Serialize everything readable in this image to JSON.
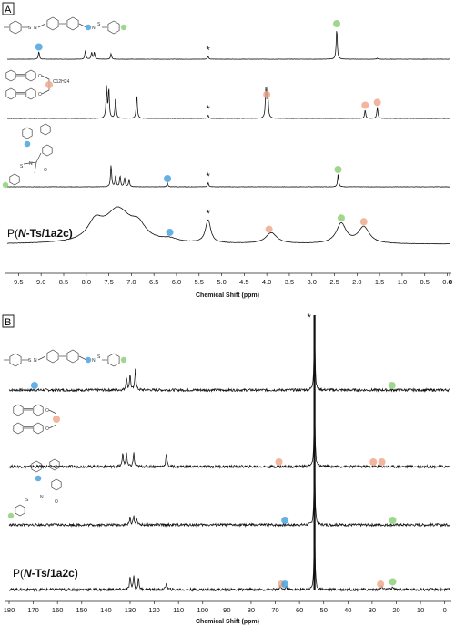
{
  "chart_data": [
    {
      "panel_label": "A",
      "type": "line",
      "nucleus_hint": "1H NMR",
      "xlabel": "Chemical Shift (ppm)",
      "xlim": [
        9.75,
        -0.05
      ],
      "reversed_x": true,
      "x_ticks": [
        "9.5",
        "9.0",
        "8.5",
        "8.0",
        "7.5",
        "7.0",
        "6.5",
        "6.0",
        "5.5",
        "5.0",
        "4.5",
        "4.0",
        "3.5",
        "3.0",
        "2.5",
        "2.0",
        "1.5",
        "1.0",
        "0.5",
        "0.0",
        "-0"
      ],
      "x_tick_values": [
        9.5,
        9.0,
        8.5,
        8.0,
        7.5,
        7.0,
        6.5,
        6.0,
        5.5,
        5.0,
        4.5,
        4.0,
        3.5,
        3.0,
        2.5,
        2.0,
        1.5,
        1.0,
        0.5,
        0.0,
        -0.05
      ],
      "series": [
        {
          "label": "",
          "kind": "sharp",
          "peaks": [
            {
              "x": 9.05,
              "h": 0.25
            },
            {
              "x": 8.02,
              "h": 0.28
            },
            {
              "x": 7.88,
              "h": 0.22
            },
            {
              "x": 7.82,
              "h": 0.22
            },
            {
              "x": 7.45,
              "h": 0.18
            },
            {
              "x": 5.3,
              "h": 0.1
            },
            {
              "x": 2.45,
              "h": 1.0
            },
            {
              "x": 1.55,
              "h": 0.03
            }
          ],
          "solvent_mark": "*",
          "solvent_x": 5.3,
          "markers": [
            {
              "x": 9.05,
              "color": "#4aa3df"
            },
            {
              "x": 2.45,
              "color": "#8fd07a"
            }
          ]
        },
        {
          "label": "",
          "kind": "sharp",
          "peaks": [
            {
              "x": 7.55,
              "h": 0.9
            },
            {
              "x": 7.5,
              "h": 0.85
            },
            {
              "x": 7.35,
              "h": 0.6
            },
            {
              "x": 6.88,
              "h": 0.7
            },
            {
              "x": 5.3,
              "h": 0.1
            },
            {
              "x": 4.02,
              "h": 0.85
            },
            {
              "x": 3.98,
              "h": 0.85
            },
            {
              "x": 1.82,
              "h": 0.25
            },
            {
              "x": 1.55,
              "h": 0.33
            }
          ],
          "solvent_mark": "*",
          "solvent_x": 5.3,
          "markers": [
            {
              "x": 4.0,
              "color": "#f0a88c"
            },
            {
              "x": 1.82,
              "color": "#f0a88c"
            },
            {
              "x": 1.55,
              "color": "#f0a88c"
            }
          ]
        },
        {
          "label": "",
          "kind": "sharp",
          "peaks": [
            {
              "x": 7.45,
              "h": 0.6
            },
            {
              "x": 7.35,
              "h": 0.3
            },
            {
              "x": 7.25,
              "h": 0.3
            },
            {
              "x": 7.15,
              "h": 0.25
            },
            {
              "x": 7.05,
              "h": 0.2
            },
            {
              "x": 6.2,
              "h": 0.1
            },
            {
              "x": 5.3,
              "h": 0.12
            },
            {
              "x": 2.42,
              "h": 0.35
            }
          ],
          "solvent_mark": "*",
          "solvent_x": 5.3,
          "markers": [
            {
              "x": 6.2,
              "color": "#4aa3df"
            },
            {
              "x": 2.42,
              "color": "#8fd07a"
            }
          ]
        },
        {
          "label": "P(N-Ts/1a2c)",
          "label_parts": [
            {
              "t": "P(",
              "b": false
            },
            {
              "t": "N",
              "b": true,
              "i": true
            },
            {
              "t": "-Ts/1a2c)",
              "b": true
            }
          ],
          "kind": "broad",
          "peaks": [
            {
              "x": 7.3,
              "h": 0.85,
              "w": 0.35
            },
            {
              "x": 7.8,
              "h": 0.45,
              "w": 0.2
            },
            {
              "x": 6.85,
              "h": 0.35,
              "w": 0.2
            },
            {
              "x": 6.15,
              "h": 0.08,
              "w": 0.2
            },
            {
              "x": 5.3,
              "h": 0.6,
              "w": 0.07
            },
            {
              "x": 3.9,
              "h": 0.28,
              "w": 0.15
            },
            {
              "x": 2.35,
              "h": 0.52,
              "w": 0.13
            },
            {
              "x": 1.85,
              "h": 0.43,
              "w": 0.15
            }
          ],
          "solvent_mark": "*",
          "solvent_x": 5.3,
          "markers": [
            {
              "x": 6.15,
              "color": "#4aa3df"
            },
            {
              "x": 3.95,
              "color": "#f0a88c"
            },
            {
              "x": 2.35,
              "color": "#8fd07a"
            },
            {
              "x": 1.85,
              "color": "#f0a88c"
            }
          ]
        }
      ]
    },
    {
      "panel_label": "B",
      "type": "line",
      "nucleus_hint": "13C NMR",
      "xlabel": "Chemical Shift (ppm)",
      "xlim": [
        180,
        -2
      ],
      "reversed_x": true,
      "x_ticks": [
        "180",
        "170",
        "160",
        "150",
        "140",
        "130",
        "120",
        "110",
        "100",
        "90",
        "80",
        "70",
        "60",
        "50",
        "40",
        "30",
        "20",
        "10",
        "0"
      ],
      "x_tick_values": [
        180,
        170,
        160,
        150,
        140,
        130,
        120,
        110,
        100,
        90,
        80,
        70,
        60,
        50,
        40,
        30,
        20,
        10,
        0
      ],
      "solvent_mark": "*",
      "solvent_x": 53.8,
      "series": [
        {
          "label": "",
          "peaks": [
            {
              "x": 131.5,
              "h": 0.2
            },
            {
              "x": 130.0,
              "h": 0.25
            },
            {
              "x": 127.8,
              "h": 0.35
            },
            {
              "x": 53.8,
              "h": 1.0
            }
          ],
          "markers": [
            {
              "x": 169.5,
              "color": "#4aa3df"
            },
            {
              "x": 21.8,
              "color": "#8fd07a"
            }
          ]
        },
        {
          "label": "",
          "peaks": [
            {
              "x": 133.0,
              "h": 0.22
            },
            {
              "x": 131.5,
              "h": 0.22
            },
            {
              "x": 128.5,
              "h": 0.22
            },
            {
              "x": 115.0,
              "h": 0.22
            },
            {
              "x": 53.8,
              "h": 1.0
            }
          ],
          "markers": [
            {
              "x": 68.5,
              "color": "#f0a88c"
            },
            {
              "x": 29.5,
              "color": "#f0a88c"
            },
            {
              "x": 26.0,
              "color": "#f0a88c"
            }
          ]
        },
        {
          "label": "",
          "peaks": [
            {
              "x": 130.0,
              "h": 0.12
            },
            {
              "x": 128.5,
              "h": 0.14
            },
            {
              "x": 127.2,
              "h": 0.1
            },
            {
              "x": 53.8,
              "h": 1.0
            }
          ],
          "markers": [
            {
              "x": 66.0,
              "color": "#4aa3df"
            },
            {
              "x": 21.5,
              "color": "#8fd07a"
            }
          ]
        },
        {
          "label": "P(N-Ts/1a2c)",
          "label_parts": [
            {
              "t": "P(",
              "b": false
            },
            {
              "t": "N",
              "b": true,
              "i": true
            },
            {
              "t": "-Ts/1a2c)",
              "b": true
            }
          ],
          "peaks": [
            {
              "x": 130.0,
              "h": 0.2
            },
            {
              "x": 128.5,
              "h": 0.22
            },
            {
              "x": 126.5,
              "h": 0.18
            },
            {
              "x": 115.0,
              "h": 0.12
            },
            {
              "x": 68.0,
              "h": 0.06
            },
            {
              "x": 65.5,
              "h": 0.05
            },
            {
              "x": 53.8,
              "h": 1.0
            },
            {
              "x": 26.0,
              "h": 0.06
            },
            {
              "x": 21.5,
              "h": 0.05
            }
          ],
          "markers": [
            {
              "x": 67.5,
              "color": "#f0a88c"
            },
            {
              "x": 66.0,
              "color": "#4aa3df"
            },
            {
              "x": 26.5,
              "color": "#f0a88c"
            },
            {
              "x": 21.5,
              "color": "#8fd07a"
            }
          ]
        }
      ]
    }
  ],
  "structures": [
    {
      "name": "tosyl-imine-monomer-structure",
      "substituent_text": ""
    },
    {
      "name": "diyne-monomer-structure",
      "substituent_text": "C12H24"
    },
    {
      "name": "pyrrolidinone-model-structure",
      "substituent_text": ""
    }
  ]
}
